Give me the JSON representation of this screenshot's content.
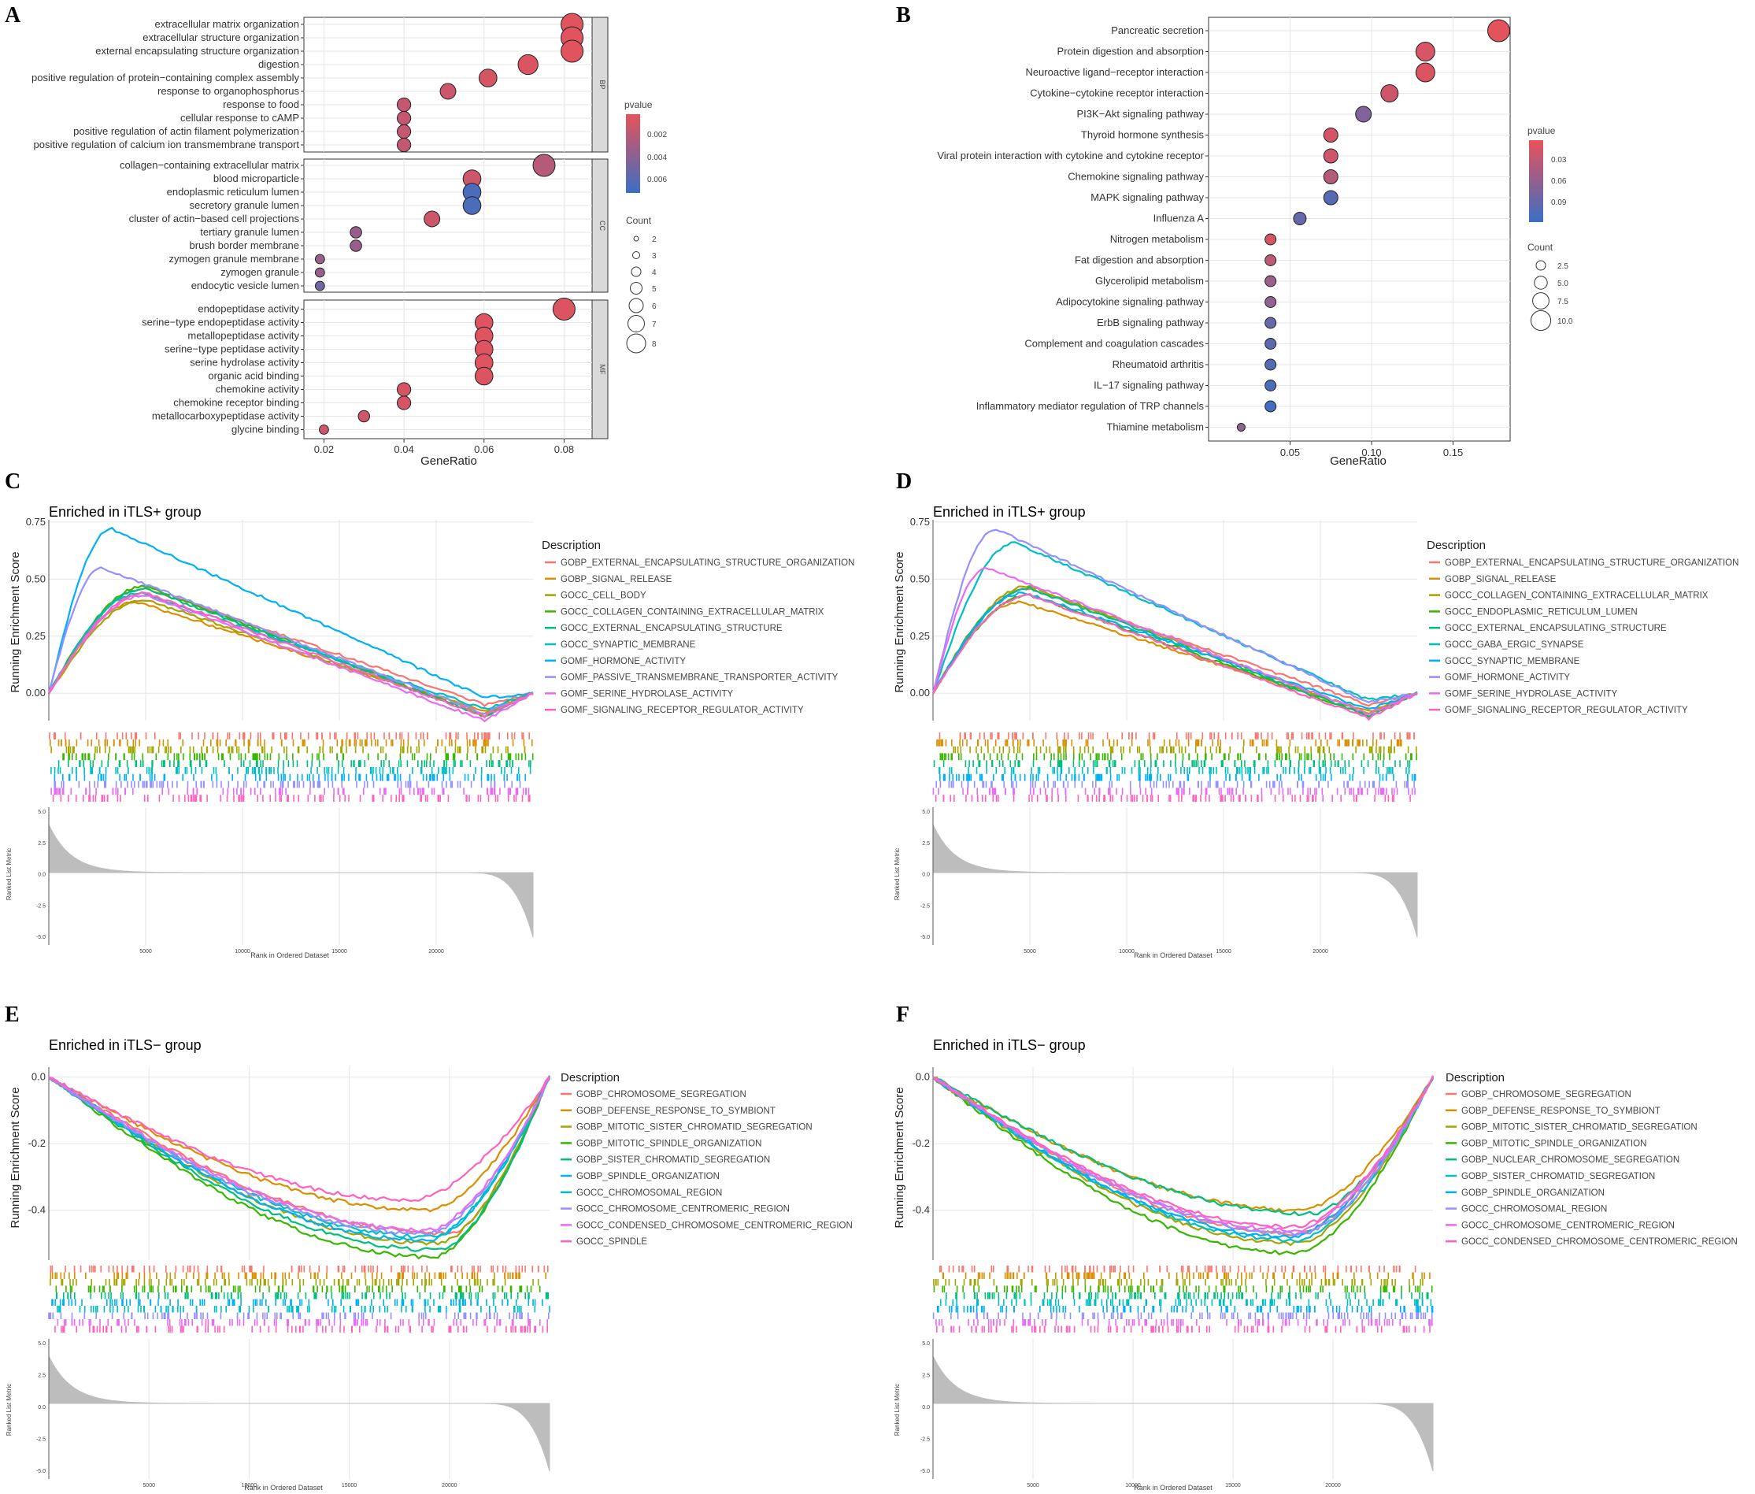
{
  "colors": {
    "low_p": "#e8525a",
    "high_p": "#3a6fc4",
    "strip": "#d9d9d9",
    "grid": "#e6e6e6",
    "rank": "#bdbdbd"
  },
  "panels": {
    "A": {
      "label": "A",
      "xlabel": "GeneRatio",
      "legend_p_title": "pvalue",
      "legend_p_ticks": [
        "0.002",
        "0.004",
        "0.006"
      ],
      "legend_count_title": "Count",
      "legend_count_ticks": [
        "2",
        "3",
        "4",
        "5",
        "6",
        "7",
        "8"
      ]
    },
    "B": {
      "label": "B",
      "xlabel": "GeneRatio",
      "legend_p_title": "pvalue",
      "legend_p_ticks": [
        "0.03",
        "0.06",
        "0.09"
      ],
      "legend_count_title": "Count",
      "legend_count_ticks": [
        "2.5",
        "5.0",
        "7.5",
        "10.0"
      ]
    },
    "C": {
      "label": "C",
      "title": "Enriched in iTLS+ group",
      "ylabel": "Running Enrichment Score",
      "legend_title": "Description",
      "ranked_label": "Ranked List Metric",
      "xlabel": "Rank in Ordered Dataset"
    },
    "D": {
      "label": "D",
      "title": "Enriched in iTLS+ group",
      "ylabel": "Running Enrichment Score",
      "legend_title": "Description",
      "ranked_label": "Ranked List Metric",
      "xlabel": "Rank in Ordered Dataset"
    },
    "E": {
      "label": "E",
      "title": "Enriched in iTLS− group",
      "ylabel": "Running Enrichment Score",
      "legend_title": "Description",
      "ranked_label": "Ranked List Metric",
      "xlabel": "Rank in Ordered Dataset"
    },
    "F": {
      "label": "F",
      "title": "Enriched in iTLS− group",
      "ylabel": "Running Enrichment Score",
      "legend_title": "Description",
      "ranked_label": "Ranked List Metric",
      "xlabel": "Rank in Ordered Dataset"
    }
  },
  "chart_data": [
    {
      "panel": "A",
      "type": "scatter",
      "xlabel": "GeneRatio",
      "xlim": [
        0.015,
        0.087
      ],
      "xticks": [
        0.02,
        0.04,
        0.06,
        0.08
      ],
      "xtick_labels": [
        "0.02",
        "0.04",
        "0.06",
        "0.08"
      ],
      "facets": [
        {
          "name": "BP",
          "terms": [
            {
              "term": "extracellular matrix organization",
              "ratio": 0.082,
              "count": 8,
              "p": 0.0003
            },
            {
              "term": "extracellular structure organization",
              "ratio": 0.082,
              "count": 8,
              "p": 0.0003
            },
            {
              "term": "external encapsulating structure organization",
              "ratio": 0.082,
              "count": 8,
              "p": 0.0003
            },
            {
              "term": "digestion",
              "ratio": 0.071,
              "count": 7,
              "p": 0.0005
            },
            {
              "term": "positive regulation of protein−containing complex assembly",
              "ratio": 0.061,
              "count": 6,
              "p": 0.0008
            },
            {
              "term": "response to organophosphorus",
              "ratio": 0.051,
              "count": 5,
              "p": 0.0012
            },
            {
              "term": "response to food",
              "ratio": 0.04,
              "count": 4,
              "p": 0.0015
            },
            {
              "term": "cellular response to cAMP",
              "ratio": 0.04,
              "count": 4,
              "p": 0.0015
            },
            {
              "term": "positive regulation of actin filament polymerization",
              "ratio": 0.04,
              "count": 4,
              "p": 0.0015
            },
            {
              "term": "positive regulation of calcium ion transmembrane transport",
              "ratio": 0.04,
              "count": 4,
              "p": 0.0016
            }
          ]
        },
        {
          "name": "CC",
          "terms": [
            {
              "term": "collagen−containing extracellular matrix",
              "ratio": 0.075,
              "count": 8,
              "p": 0.0022
            },
            {
              "term": "blood microparticle",
              "ratio": 0.057,
              "count": 6,
              "p": 0.0012
            },
            {
              "term": "endoplasmic reticulum lumen",
              "ratio": 0.057,
              "count": 6,
              "p": 0.0068
            },
            {
              "term": "secretory granule lumen",
              "ratio": 0.057,
              "count": 6,
              "p": 0.0068
            },
            {
              "term": "cluster of actin−based cell projections",
              "ratio": 0.047,
              "count": 5,
              "p": 0.0012
            },
            {
              "term": "tertiary granule lumen",
              "ratio": 0.028,
              "count": 3,
              "p": 0.0035
            },
            {
              "term": "brush border membrane",
              "ratio": 0.028,
              "count": 3,
              "p": 0.0035
            },
            {
              "term": "zymogen granule membrane",
              "ratio": 0.019,
              "count": 2,
              "p": 0.0035
            },
            {
              "term": "zymogen granule",
              "ratio": 0.019,
              "count": 2,
              "p": 0.0035
            },
            {
              "term": "endocytic vesicle lumen",
              "ratio": 0.019,
              "count": 2,
              "p": 0.0052
            }
          ]
        },
        {
          "name": "MF",
          "terms": [
            {
              "term": "endopeptidase activity",
              "ratio": 0.08,
              "count": 8,
              "p": 0.0006
            },
            {
              "term": "serine−type endopeptidase activity",
              "ratio": 0.06,
              "count": 6,
              "p": 0.0004
            },
            {
              "term": "metallopeptidase activity",
              "ratio": 0.06,
              "count": 6,
              "p": 0.0004
            },
            {
              "term": "serine−type peptidase activity",
              "ratio": 0.06,
              "count": 6,
              "p": 0.0004
            },
            {
              "term": "serine hydrolase activity",
              "ratio": 0.06,
              "count": 6,
              "p": 0.0004
            },
            {
              "term": "organic acid binding",
              "ratio": 0.06,
              "count": 6,
              "p": 0.0006
            },
            {
              "term": "chemokine activity",
              "ratio": 0.04,
              "count": 4,
              "p": 0.0008
            },
            {
              "term": "chemokine receptor binding",
              "ratio": 0.04,
              "count": 4,
              "p": 0.0008
            },
            {
              "term": "metallocarboxypeptidase activity",
              "ratio": 0.03,
              "count": 3,
              "p": 0.0012
            },
            {
              "term": "glycine binding",
              "ratio": 0.02,
              "count": 2,
              "p": 0.0012
            }
          ]
        }
      ]
    },
    {
      "panel": "B",
      "type": "scatter",
      "xlabel": "GeneRatio",
      "xlim": [
        0.0,
        0.185
      ],
      "xticks": [
        0.05,
        0.1,
        0.15
      ],
      "xtick_labels": [
        "0.05",
        "0.10",
        "0.15"
      ],
      "terms": [
        {
          "term": "Pancreatic secretion",
          "ratio": 0.178,
          "count": 10,
          "p": 0.003
        },
        {
          "term": "Protein digestion and absorption",
          "ratio": 0.133,
          "count": 8,
          "p": 0.01
        },
        {
          "term": "Neuroactive ligand−receptor interaction",
          "ratio": 0.133,
          "count": 8,
          "p": 0.008
        },
        {
          "term": "Cytokine−cytokine receptor interaction",
          "ratio": 0.111,
          "count": 7,
          "p": 0.015
        },
        {
          "term": "PI3K−Akt signaling pathway",
          "ratio": 0.095,
          "count": 6,
          "p": 0.06
        },
        {
          "term": "Thyroid hormone synthesis",
          "ratio": 0.075,
          "count": 5,
          "p": 0.012
        },
        {
          "term": "Viral protein interaction with cytokine and cytokine receptor",
          "ratio": 0.075,
          "count": 5,
          "p": 0.015
        },
        {
          "term": "Chemokine signaling pathway",
          "ratio": 0.075,
          "count": 5,
          "p": 0.03
        },
        {
          "term": "MAPK signaling pathway",
          "ratio": 0.075,
          "count": 5,
          "p": 0.085
        },
        {
          "term": "Influenza A",
          "ratio": 0.056,
          "count": 4,
          "p": 0.075
        },
        {
          "term": "Nitrogen metabolism",
          "ratio": 0.038,
          "count": 3,
          "p": 0.012
        },
        {
          "term": "Fat digestion and absorption",
          "ratio": 0.038,
          "count": 3,
          "p": 0.025
        },
        {
          "term": "Glycerolipid metabolism",
          "ratio": 0.038,
          "count": 3,
          "p": 0.045
        },
        {
          "term": "Adipocytokine signaling pathway",
          "ratio": 0.038,
          "count": 3,
          "p": 0.05
        },
        {
          "term": "ErbB signaling pathway",
          "ratio": 0.038,
          "count": 3,
          "p": 0.075
        },
        {
          "term": "Complement and coagulation cascades",
          "ratio": 0.038,
          "count": 3,
          "p": 0.08
        },
        {
          "term": "Rheumatoid arthritis",
          "ratio": 0.038,
          "count": 3,
          "p": 0.085
        },
        {
          "term": "IL−17 signaling pathway",
          "ratio": 0.038,
          "count": 3,
          "p": 0.09
        },
        {
          "term": "Inflammatory mediator regulation of TRP channels",
          "ratio": 0.038,
          "count": 3,
          "p": 0.095
        },
        {
          "term": "Thiamine metabolism",
          "ratio": 0.02,
          "count": 1,
          "p": 0.05
        }
      ]
    },
    {
      "panel": "C",
      "type": "line",
      "ylim": [
        -0.12,
        0.76
      ],
      "yticks": [
        0.0,
        0.25,
        0.5,
        0.75
      ],
      "ytick_labels": [
        "0.00",
        "0.25",
        "0.50",
        "0.75"
      ],
      "rank_yticks": [
        "5.0",
        "2.5",
        "0.0",
        "-2.5",
        "-5.0"
      ],
      "rank_xticks": [
        "5000",
        "10000",
        "15000",
        "20000"
      ],
      "series": [
        {
          "name": "GOBP_EXTERNAL_ENCAPSULATING_STRUCTURE_ORGANIZATION",
          "color": "#f8766d",
          "peak": 0.46,
          "peak_x": 0.2,
          "min": -0.05
        },
        {
          "name": "GOBP_SIGNAL_RELEASE",
          "color": "#d89000",
          "peak": 0.4,
          "peak_x": 0.18,
          "min": -0.08
        },
        {
          "name": "GOCC_CELL_BODY",
          "color": "#a3a500",
          "peak": 0.41,
          "peak_x": 0.2,
          "min": -0.09
        },
        {
          "name": "GOCC_COLLAGEN_CONTAINING_EXTRACELLULAR_MATRIX",
          "color": "#39b600",
          "peak": 0.47,
          "peak_x": 0.2,
          "min": -0.1
        },
        {
          "name": "GOCC_EXTERNAL_ENCAPSULATING_STRUCTURE",
          "color": "#00bf7d",
          "peak": 0.46,
          "peak_x": 0.2,
          "min": -0.1
        },
        {
          "name": "GOCC_SYNAPTIC_MEMBRANE",
          "color": "#00bfc4",
          "peak": 0.44,
          "peak_x": 0.19,
          "min": -0.07
        },
        {
          "name": "GOMF_HORMONE_ACTIVITY",
          "color": "#00b0f6",
          "peak": 0.72,
          "peak_x": 0.13,
          "min": -0.02
        },
        {
          "name": "GOMF_PASSIVE_TRANSMEMBRANE_TRANSPORTER_ACTIVITY",
          "color": "#9590ff",
          "peak": 0.55,
          "peak_x": 0.11,
          "min": -0.09
        },
        {
          "name": "GOMF_SERINE_HYDROLASE_ACTIVITY",
          "color": "#e76bf3",
          "peak": 0.43,
          "peak_x": 0.2,
          "min": -0.12
        },
        {
          "name": "GOMF_SIGNALING_RECEPTOR_REGULATOR_ACTIVITY",
          "color": "#ff62bc",
          "peak": 0.44,
          "peak_x": 0.2,
          "min": -0.1
        }
      ]
    },
    {
      "panel": "D",
      "type": "line",
      "ylim": [
        -0.12,
        0.76
      ],
      "yticks": [
        0.0,
        0.25,
        0.5,
        0.75
      ],
      "ytick_labels": [
        "0.00",
        "0.25",
        "0.50",
        "0.75"
      ],
      "rank_yticks": [
        "5.0",
        "2.5",
        "0.0",
        "-2.5",
        "-5.0"
      ],
      "rank_xticks": [
        "5000",
        "10000",
        "15000",
        "20000"
      ],
      "series": [
        {
          "name": "GOBP_EXTERNAL_ENCAPSULATING_STRUCTURE_ORGANIZATION",
          "color": "#f8766d",
          "peak": 0.46,
          "peak_x": 0.2,
          "min": -0.05
        },
        {
          "name": "GOBP_SIGNAL_RELEASE",
          "color": "#d89000",
          "peak": 0.4,
          "peak_x": 0.18,
          "min": -0.08
        },
        {
          "name": "GOCC_COLLAGEN_CONTAINING_EXTRACELLULAR_MATRIX",
          "color": "#a3a500",
          "peak": 0.47,
          "peak_x": 0.2,
          "min": -0.09
        },
        {
          "name": "GOCC_ENDOPLASMIC_RETICULUM_LUMEN",
          "color": "#39b600",
          "peak": 0.43,
          "peak_x": 0.2,
          "min": -0.1
        },
        {
          "name": "GOCC_EXTERNAL_ENCAPSULATING_STRUCTURE",
          "color": "#00bf7d",
          "peak": 0.46,
          "peak_x": 0.2,
          "min": -0.1
        },
        {
          "name": "GOCC_GABA_ERGIC_SYNAPSE",
          "color": "#00bfc4",
          "peak": 0.66,
          "peak_x": 0.17,
          "min": -0.03
        },
        {
          "name": "GOCC_SYNAPTIC_MEMBRANE",
          "color": "#00b0f6",
          "peak": 0.44,
          "peak_x": 0.19,
          "min": -0.07
        },
        {
          "name": "GOMF_HORMONE_ACTIVITY",
          "color": "#9590ff",
          "peak": 0.72,
          "peak_x": 0.13,
          "min": -0.04
        },
        {
          "name": "GOMF_SERINE_HYDROLASE_ACTIVITY",
          "color": "#e76bf3",
          "peak": 0.55,
          "peak_x": 0.11,
          "min": -0.09
        },
        {
          "name": "GOMF_SIGNALING_RECEPTOR_REGULATOR_ACTIVITY",
          "color": "#ff62bc",
          "peak": 0.43,
          "peak_x": 0.2,
          "min": -0.11
        }
      ]
    },
    {
      "panel": "E",
      "type": "line",
      "ylim": [
        -0.55,
        0.03
      ],
      "yticks": [
        0.0,
        -0.2,
        -0.4
      ],
      "ytick_labels": [
        "0.0",
        "-0.2",
        "-0.4"
      ],
      "rank_yticks": [
        "5.0",
        "2.5",
        "0.0",
        "-2.5",
        "-5.0"
      ],
      "rank_xticks": [
        "5000",
        "10000",
        "15000",
        "20000"
      ],
      "series": [
        {
          "name": "GOBP_CHROMOSOME_SEGREGATION",
          "color": "#f8766d",
          "min": -0.47,
          "min_x": 0.8
        },
        {
          "name": "GOBP_DEFENSE_RESPONSE_TO_SYMBIONT",
          "color": "#d89000",
          "min": -0.4,
          "min_x": 0.76
        },
        {
          "name": "GOBP_MITOTIC_SISTER_CHROMATID_SEGREGATION",
          "color": "#a3a500",
          "min": -0.5,
          "min_x": 0.78
        },
        {
          "name": "GOBP_MITOTIC_SPINDLE_ORGANIZATION",
          "color": "#39b600",
          "min": -0.54,
          "min_x": 0.77
        },
        {
          "name": "GOBP_SISTER_CHROMATID_SEGREGATION",
          "color": "#00bf7d",
          "min": -0.52,
          "min_x": 0.78
        },
        {
          "name": "GOBP_SPINDLE_ORGANIZATION",
          "color": "#00b0f6",
          "min": -0.49,
          "min_x": 0.76
        },
        {
          "name": "GOCC_CHROMOSOMAL_REGION",
          "color": "#00bfc4",
          "min": -0.48,
          "min_x": 0.77
        },
        {
          "name": "GOCC_CHROMOSOME_CENTROMERIC_REGION",
          "color": "#9590ff",
          "min": -0.47,
          "min_x": 0.76
        },
        {
          "name": "GOCC_CONDENSED_CHROMOSOME_CENTROMERIC_REGION",
          "color": "#e76bf3",
          "min": -0.46,
          "min_x": 0.76
        },
        {
          "name": "GOCC_SPINDLE",
          "color": "#ff62bc",
          "min": -0.37,
          "min_x": 0.73
        }
      ]
    },
    {
      "panel": "F",
      "type": "line",
      "ylim": [
        -0.55,
        0.03
      ],
      "yticks": [
        0.0,
        -0.2,
        -0.4
      ],
      "ytick_labels": [
        "0.0",
        "-0.2",
        "-0.4"
      ],
      "rank_yticks": [
        "5.0",
        "2.5",
        "0.0",
        "-2.5",
        "-5.0"
      ],
      "rank_xticks": [
        "5000",
        "10000",
        "15000",
        "20000"
      ],
      "series": [
        {
          "name": "GOBP_CHROMOSOME_SEGREGATION",
          "color": "#f8766d",
          "min": -0.47,
          "min_x": 0.73
        },
        {
          "name": "GOBP_DEFENSE_RESPONSE_TO_SYMBIONT",
          "color": "#d89000",
          "min": -0.4,
          "min_x": 0.74
        },
        {
          "name": "GOBP_MITOTIC_SISTER_CHROMATID_SEGREGATION",
          "color": "#a3a500",
          "min": -0.5,
          "min_x": 0.73
        },
        {
          "name": "GOBP_MITOTIC_SPINDLE_ORGANIZATION",
          "color": "#39b600",
          "min": -0.53,
          "min_x": 0.73
        },
        {
          "name": "GOBP_NUCLEAR_CHROMOSOME_SEGREGATION",
          "color": "#00bf7d",
          "min": -0.41,
          "min_x": 0.76
        },
        {
          "name": "GOBP_SISTER_CHROMATID_SEGREGATION",
          "color": "#00bfc4",
          "min": -0.49,
          "min_x": 0.73
        },
        {
          "name": "GOBP_SPINDLE_ORGANIZATION",
          "color": "#00b0f6",
          "min": -0.48,
          "min_x": 0.72
        },
        {
          "name": "GOCC_CHROMOSOMAL_REGION",
          "color": "#9590ff",
          "min": -0.47,
          "min_x": 0.74
        },
        {
          "name": "GOCC_CHROMOSOME_CENTROMERIC_REGION",
          "color": "#e76bf3",
          "min": -0.46,
          "min_x": 0.73
        },
        {
          "name": "GOCC_CONDENSED_CHROMOSOME_CENTROMERIC_REGION",
          "color": "#ff62bc",
          "min": -0.45,
          "min_x": 0.73
        }
      ]
    }
  ]
}
